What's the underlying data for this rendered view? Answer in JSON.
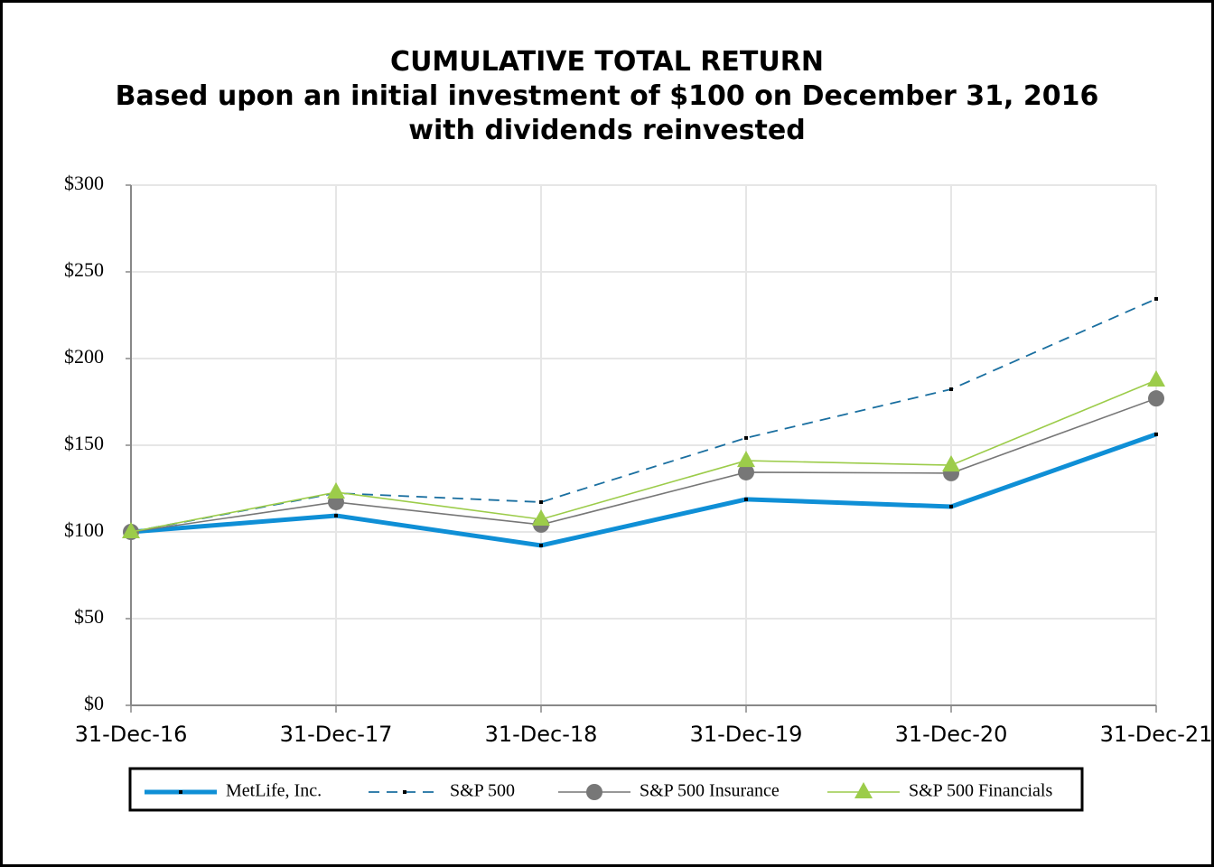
{
  "chart_data": {
    "type": "line",
    "title": "CUMULATIVE TOTAL RETURN",
    "subtitle": [
      "Based upon an initial investment of $100 on December 31, 2016",
      "with dividends reinvested"
    ],
    "categories": [
      "31-Dec-16",
      "31-Dec-17",
      "31-Dec-18",
      "31-Dec-19",
      "31-Dec-20",
      "31-Dec-21"
    ],
    "series": [
      {
        "name": "MetLife, Inc.",
        "color": "#0f8fd6",
        "width": 5,
        "dash": "none",
        "marker": "square",
        "values": [
          100,
          109.4,
          92.2,
          118.8,
          114.6,
          156.3
        ]
      },
      {
        "name": "S&P 500",
        "color": "#1a6fa0",
        "width": 1.8,
        "dash": "12 8",
        "marker": "square",
        "values": [
          100,
          122.4,
          117.2,
          154.2,
          182.3,
          234.4
        ]
      },
      {
        "name": "S&P 500 Insurance",
        "color": "#777777",
        "width": 1.6,
        "dash": "none",
        "marker": "circle",
        "values": [
          100,
          117.2,
          104.2,
          134.4,
          133.9,
          177.0
        ]
      },
      {
        "name": "S&P 500 Financials",
        "color": "#9ccc4a",
        "width": 1.6,
        "dash": "none",
        "marker": "triangle",
        "values": [
          100,
          122.9,
          107.3,
          141.1,
          138.5,
          187.5
        ]
      }
    ],
    "ylim": [
      0,
      300
    ],
    "yticks": [
      {
        "value": 0,
        "label": "$0"
      },
      {
        "value": 50,
        "label": "$50"
      },
      {
        "value": 100,
        "label": "$100"
      },
      {
        "value": 150,
        "label": "$150"
      },
      {
        "value": 200,
        "label": "$200"
      },
      {
        "value": 250,
        "label": "$250"
      },
      {
        "value": 300,
        "label": "$300"
      }
    ],
    "grid": true,
    "legend": "bottom"
  }
}
